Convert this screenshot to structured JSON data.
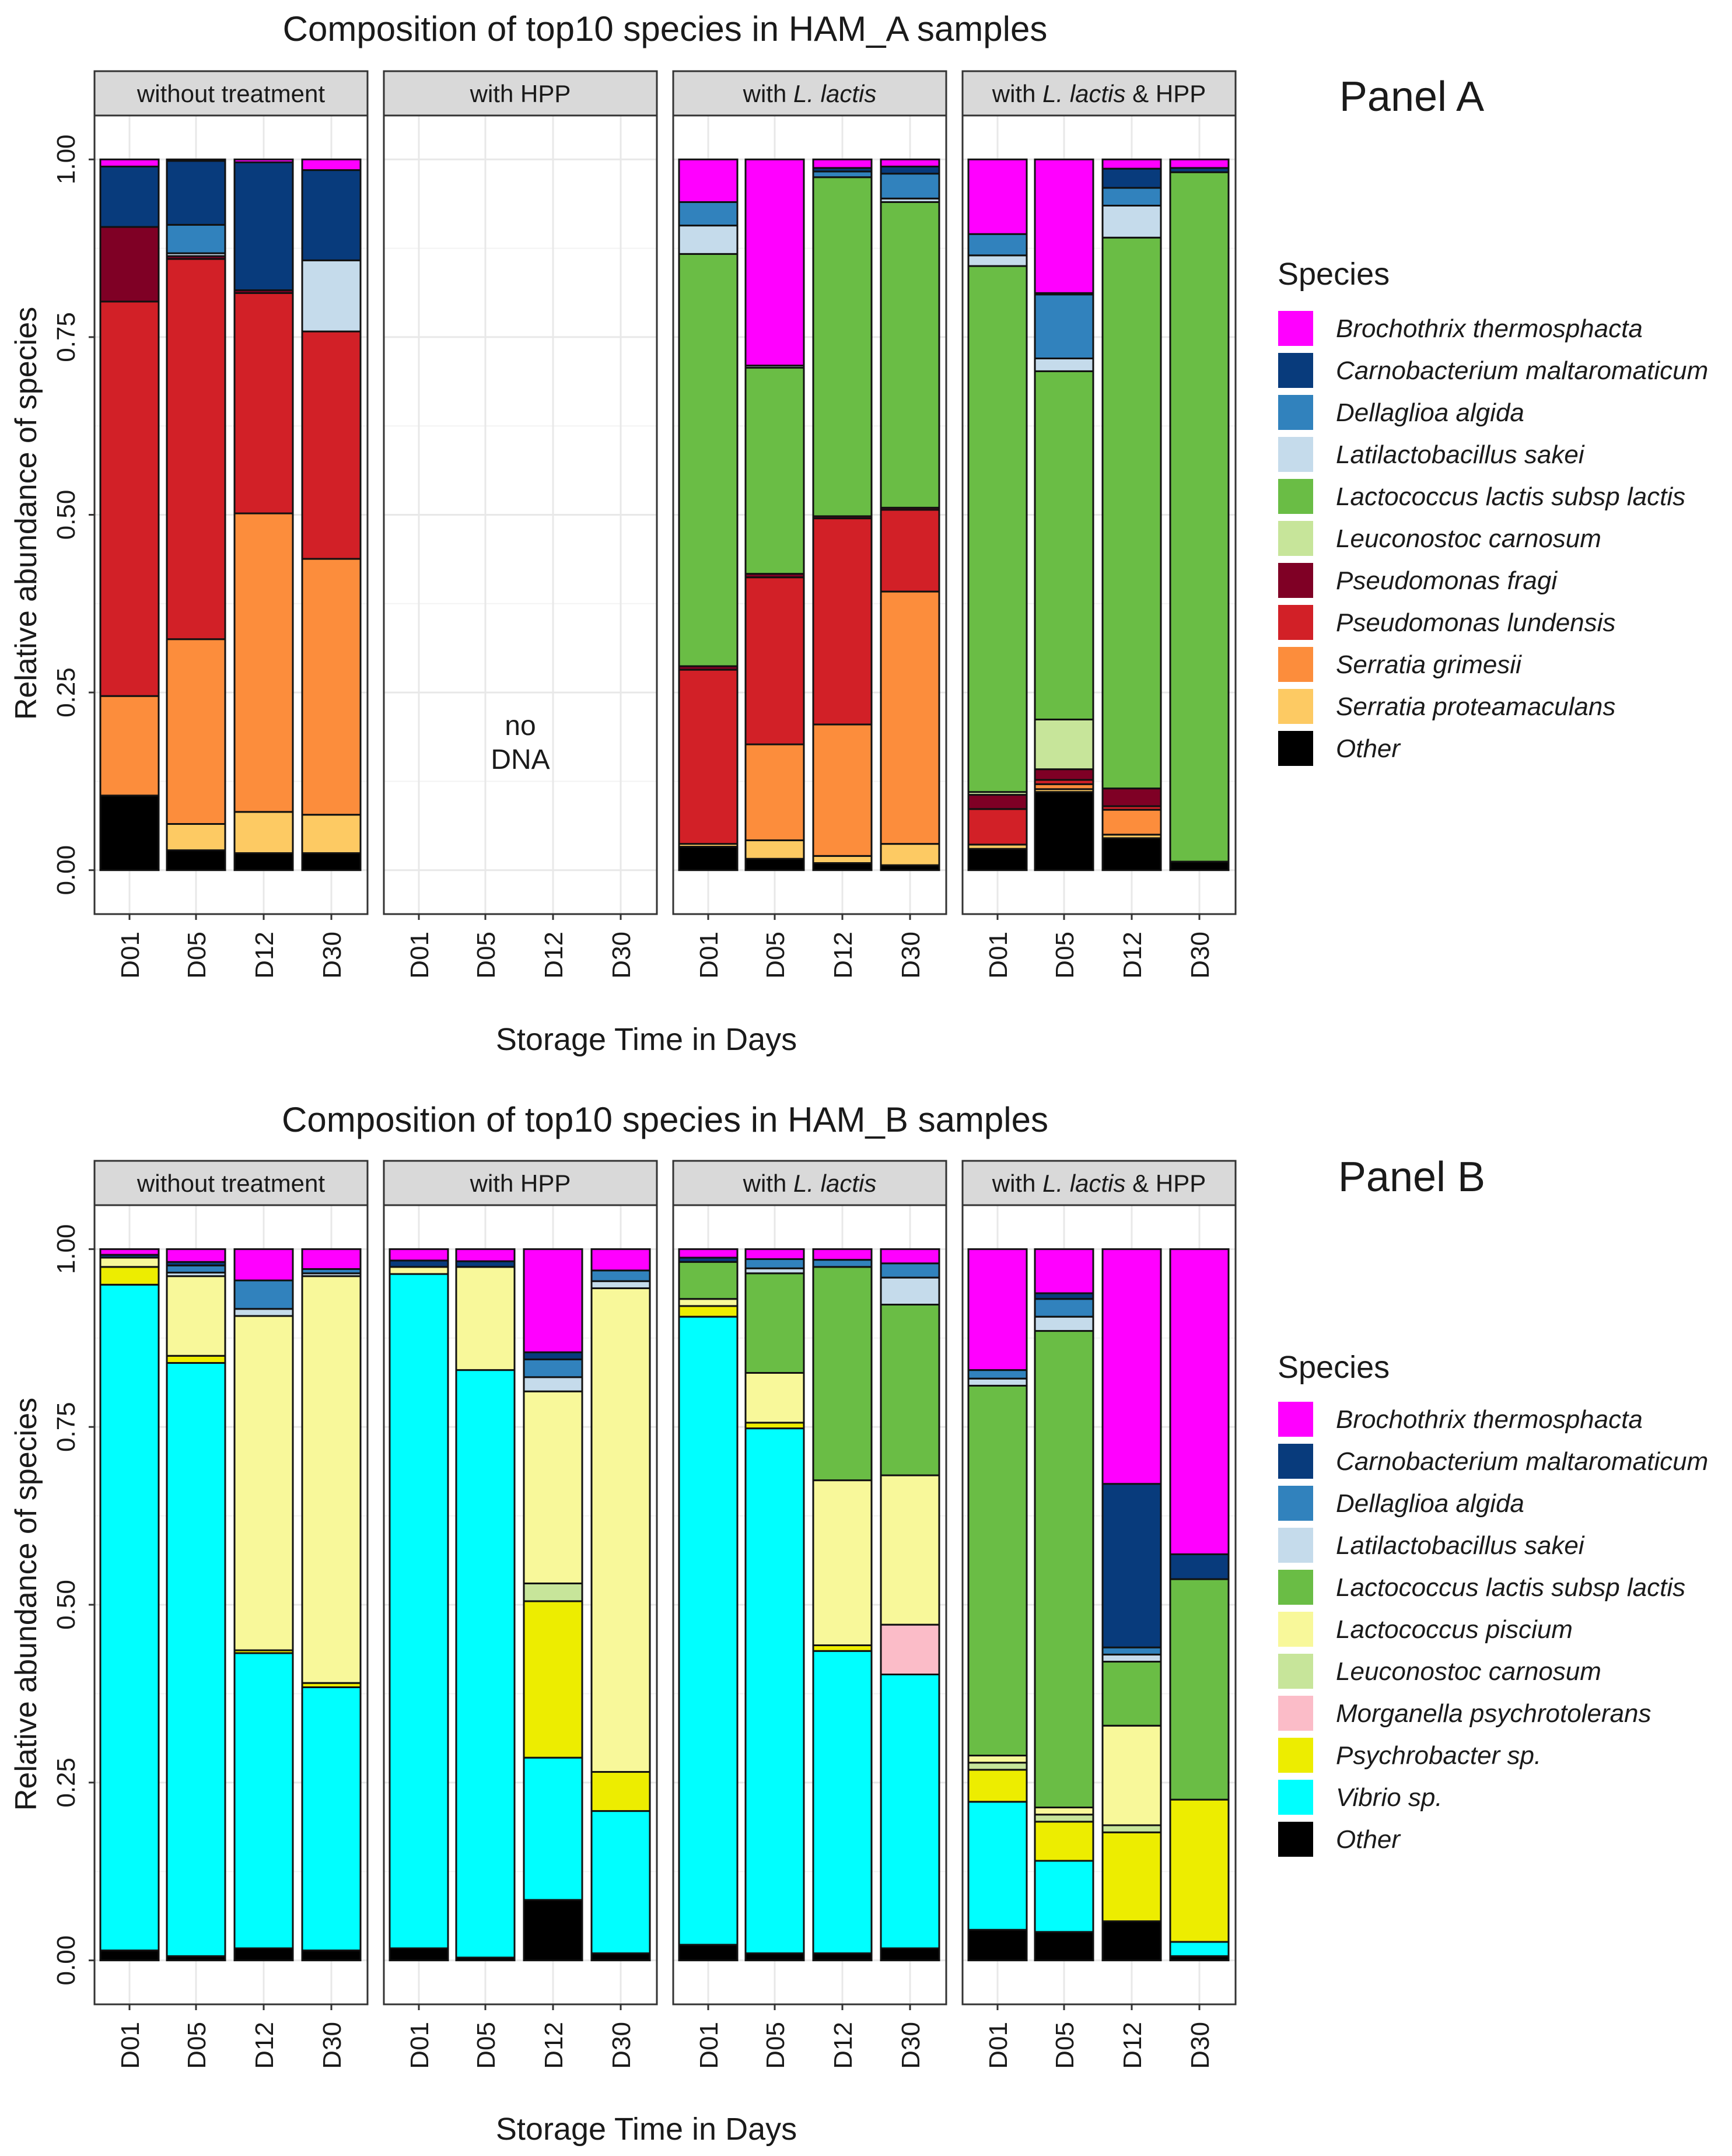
{
  "colors": {
    "Brochothrix thermosphacta": "#ff00ff",
    "Carnobacterium maltaromaticum": "#083b7c",
    "Dellaglioa algida": "#3182bd",
    "Latilactobacillus sakei": "#c5dbeb",
    "Lactococcus lactis subsp lactis": "#6abd45",
    "Lactococcus piscium": "#f8f89a",
    "Leuconostoc carnosum": "#c7e59a",
    "Morganella psychrotolerans": "#fbbcc8",
    "Pseudomonas fragi": "#7f0025",
    "Pseudomonas lundensis": "#d22027",
    "Serratia grimesii": "#fc8d3c",
    "Serratia proteamaculans": "#fdca63",
    "Psychrobacter sp.": "#eded00",
    "Vibrio sp.": "#00ffff",
    "Other": "#000000"
  },
  "chart_data": [
    {
      "type": "bar",
      "stacked": true,
      "panel_label": "Panel A",
      "title": "Composition of top10 species in HAM_A samples",
      "xlabel": "Storage Time in Days",
      "ylabel": "Relative abundance of species",
      "ylim": [
        0,
        1
      ],
      "yticks": [
        "0.00",
        "0.25",
        "0.50",
        "0.75",
        "1.00"
      ],
      "categories": [
        "D01",
        "D05",
        "D12",
        "D30"
      ],
      "legend_title": "Species",
      "legend": [
        {
          "name": "Brochothrix thermosphacta"
        },
        {
          "name": "Carnobacterium maltaromaticum"
        },
        {
          "name": "Dellaglioa algida"
        },
        {
          "name": "Latilactobacillus sakei"
        },
        {
          "name": "Lactococcus lactis subsp lactis",
          "highlight": "#3aa645"
        },
        {
          "name": "Leuconostoc carnosum"
        },
        {
          "name": "Pseudomonas fragi"
        },
        {
          "name": "Pseudomonas lundensis"
        },
        {
          "name": "Serratia grimesii"
        },
        {
          "name": "Serratia proteamaculans"
        },
        {
          "name": "Other"
        }
      ],
      "stack_order": [
        "Other",
        "Serratia proteamaculans",
        "Serratia grimesii",
        "Pseudomonas lundensis",
        "Pseudomonas fragi",
        "Leuconostoc carnosum",
        "Lactococcus lactis subsp lactis",
        "Latilactobacillus sakei",
        "Dellaglioa algida",
        "Carnobacterium maltaromaticum",
        "Brochothrix thermosphacta"
      ],
      "facets": [
        {
          "label": "without treatment",
          "bars": [
            {
              "Other": 0.105,
              "Serratia grimesii": 0.14,
              "Pseudomonas lundensis": 0.555,
              "Pseudomonas fragi": 0.105,
              "Carnobacterium maltaromaticum": 0.085,
              "Brochothrix thermosphacta": 0.01
            },
            {
              "Other": 0.028,
              "Serratia proteamaculans": 0.037,
              "Serratia grimesii": 0.26,
              "Pseudomonas lundensis": 0.535,
              "Pseudomonas fragi": 0.004,
              "Latilactobacillus sakei": 0.004,
              "Dellaglioa algida": 0.04,
              "Carnobacterium maltaromaticum": 0.09,
              "Brochothrix thermosphacta": 0.002
            },
            {
              "Other": 0.024,
              "Serratia proteamaculans": 0.058,
              "Serratia grimesii": 0.42,
              "Pseudomonas lundensis": 0.31,
              "Pseudomonas fragi": 0.004,
              "Carnobacterium maltaromaticum": 0.18,
              "Brochothrix thermosphacta": 0.004
            },
            {
              "Other": 0.024,
              "Serratia proteamaculans": 0.054,
              "Serratia grimesii": 0.36,
              "Pseudomonas lundensis": 0.32,
              "Latilactobacillus sakei": 0.1,
              "Carnobacterium maltaromaticum": 0.127,
              "Brochothrix thermosphacta": 0.015
            }
          ]
        },
        {
          "label": "with HPP",
          "note": "no\nDNA",
          "bars": []
        },
        {
          "label": "with L. lactis",
          "label_plain": "with ",
          "label_italic": "L. lactis",
          "label_after": "",
          "bars": [
            {
              "Other": 0.033,
              "Serratia proteamaculans": 0.004,
              "Pseudomonas lundensis": 0.245,
              "Pseudomonas fragi": 0.005,
              "Lactococcus lactis subsp lactis": 0.58,
              "Latilactobacillus sakei": 0.04,
              "Dellaglioa algida": 0.033,
              "Brochothrix thermosphacta": 0.06
            },
            {
              "Other": 0.016,
              "Serratia proteamaculans": 0.026,
              "Serratia grimesii": 0.135,
              "Pseudomonas lundensis": 0.235,
              "Pseudomonas fragi": 0.005,
              "Lactococcus lactis subsp lactis": 0.29,
              "Latilactobacillus sakei": 0.003,
              "Brochothrix thermosphacta": 0.29
            },
            {
              "Other": 0.01,
              "Serratia proteamaculans": 0.01,
              "Serratia grimesii": 0.185,
              "Pseudomonas lundensis": 0.29,
              "Pseudomonas fragi": 0.003,
              "Lactococcus lactis subsp lactis": 0.477,
              "Dellaglioa algida": 0.008,
              "Carnobacterium maltaromaticum": 0.005,
              "Brochothrix thermosphacta": 0.012
            },
            {
              "Other": 0.007,
              "Serratia proteamaculans": 0.03,
              "Serratia grimesii": 0.355,
              "Pseudomonas lundensis": 0.115,
              "Pseudomonas fragi": 0.003,
              "Lactococcus lactis subsp lactis": 0.43,
              "Latilactobacillus sakei": 0.005,
              "Dellaglioa algida": 0.035,
              "Carnobacterium maltaromaticum": 0.01,
              "Brochothrix thermosphacta": 0.01
            }
          ]
        },
        {
          "label": "with L. lactis & HPP",
          "label_plain": "with ",
          "label_italic": "L. lactis",
          "label_after": " & HPP",
          "bars": [
            {
              "Other": 0.03,
              "Serratia proteamaculans": 0.006,
              "Pseudomonas lundensis": 0.05,
              "Pseudomonas fragi": 0.02,
              "Leuconostoc carnosum": 0.004,
              "Lactococcus lactis subsp lactis": 0.74,
              "Latilactobacillus sakei": 0.015,
              "Dellaglioa algida": 0.03,
              "Brochothrix thermosphacta": 0.105
            },
            {
              "Other": 0.11,
              "Serratia proteamaculans": 0.004,
              "Serratia grimesii": 0.007,
              "Pseudomonas lundensis": 0.006,
              "Pseudomonas fragi": 0.015,
              "Leuconostoc carnosum": 0.07,
              "Lactococcus lactis subsp lactis": 0.49,
              "Latilactobacillus sakei": 0.018,
              "Dellaglioa algida": 0.09,
              "Carnobacterium maltaromaticum": 0.002,
              "Brochothrix thermosphacta": 0.188
            },
            {
              "Other": 0.045,
              "Serratia proteamaculans": 0.005,
              "Serratia grimesii": 0.035,
              "Pseudomonas lundensis": 0.005,
              "Pseudomonas fragi": 0.025,
              "Lactococcus lactis subsp lactis": 0.775,
              "Latilactobacillus sakei": 0.045,
              "Dellaglioa algida": 0.025,
              "Carnobacterium maltaromaticum": 0.027,
              "Brochothrix thermosphacta": 0.013
            },
            {
              "Other": 0.012,
              "Lactococcus lactis subsp lactis": 0.97,
              "Carnobacterium maltaromaticum": 0.006,
              "Brochothrix thermosphacta": 0.012
            }
          ]
        }
      ]
    },
    {
      "type": "bar",
      "stacked": true,
      "panel_label": "Panel B",
      "title": "Composition of top10 species in HAM_B samples",
      "xlabel": "Storage Time in Days",
      "ylabel": "Relative abundance of species",
      "ylim": [
        0,
        1
      ],
      "yticks": [
        "0.00",
        "0.25",
        "0.50",
        "0.75",
        "1.00"
      ],
      "categories": [
        "D01",
        "D05",
        "D12",
        "D30"
      ],
      "legend_title": "Species",
      "legend": [
        {
          "name": "Brochothrix thermosphacta"
        },
        {
          "name": "Carnobacterium maltaromaticum"
        },
        {
          "name": "Dellaglioa algida"
        },
        {
          "name": "Latilactobacillus sakei"
        },
        {
          "name": "Lactococcus lactis subsp lactis",
          "highlight": "#22a022"
        },
        {
          "name": "Lactococcus piscium"
        },
        {
          "name": "Leuconostoc carnosum"
        },
        {
          "name": "Morganella psychrotolerans"
        },
        {
          "name": "Psychrobacter sp."
        },
        {
          "name": "Vibrio sp."
        },
        {
          "name": "Other"
        }
      ],
      "stack_order": [
        "Other",
        "Vibrio sp.",
        "Psychrobacter sp.",
        "Morganella psychrotolerans",
        "Leuconostoc carnosum",
        "Lactococcus piscium",
        "Lactococcus lactis subsp lactis",
        "Latilactobacillus sakei",
        "Dellaglioa algida",
        "Carnobacterium maltaromaticum",
        "Brochothrix thermosphacta"
      ],
      "facets": [
        {
          "label": "without treatment",
          "bars": [
            {
              "Other": 0.014,
              "Vibrio sp.": 0.936,
              "Psychrobacter sp.": 0.025,
              "Lactococcus piscium": 0.013,
              "Carnobacterium maltaromaticum": 0.004,
              "Brochothrix thermosphacta": 0.008
            },
            {
              "Other": 0.006,
              "Vibrio sp.": 0.834,
              "Psychrobacter sp.": 0.01,
              "Lactococcus piscium": 0.112,
              "Latilactobacillus sakei": 0.005,
              "Dellaglioa algida": 0.01,
              "Carnobacterium maltaromaticum": 0.005,
              "Brochothrix thermosphacta": 0.018
            },
            {
              "Other": 0.017,
              "Vibrio sp.": 0.415,
              "Psychrobacter sp.": 0.004,
              "Lactococcus piscium": 0.47,
              "Latilactobacillus sakei": 0.01,
              "Dellaglioa algida": 0.04,
              "Brochothrix thermosphacta": 0.044
            },
            {
              "Other": 0.014,
              "Vibrio sp.": 0.37,
              "Psychrobacter sp.": 0.006,
              "Lactococcus piscium": 0.572,
              "Latilactobacillus sakei": 0.004,
              "Dellaglioa algida": 0.006,
              "Brochothrix thermosphacta": 0.028
            }
          ]
        },
        {
          "label": "with HPP",
          "bars": [
            {
              "Other": 0.017,
              "Vibrio sp.": 0.948,
              "Lactococcus piscium": 0.01,
              "Carnobacterium maltaromaticum": 0.009,
              "Brochothrix thermosphacta": 0.016
            },
            {
              "Other": 0.004,
              "Vibrio sp.": 0.826,
              "Lactococcus piscium": 0.145,
              "Carnobacterium maltaromaticum": 0.008,
              "Brochothrix thermosphacta": 0.017
            },
            {
              "Other": 0.085,
              "Vibrio sp.": 0.2,
              "Psychrobacter sp.": 0.22,
              "Leuconostoc carnosum": 0.025,
              "Lactococcus piscium": 0.27,
              "Latilactobacillus sakei": 0.02,
              "Dellaglioa algida": 0.025,
              "Carnobacterium maltaromaticum": 0.01,
              "Brochothrix thermosphacta": 0.145
            },
            {
              "Other": 0.01,
              "Vibrio sp.": 0.2,
              "Psychrobacter sp.": 0.055,
              "Lactococcus piscium": 0.68,
              "Latilactobacillus sakei": 0.01,
              "Dellaglioa algida": 0.015,
              "Brochothrix thermosphacta": 0.03
            }
          ]
        },
        {
          "label": "with L. lactis",
          "label_plain": "with ",
          "label_italic": "L. lactis",
          "label_after": "",
          "bars": [
            {
              "Other": 0.022,
              "Vibrio sp.": 0.883,
              "Psychrobacter sp.": 0.015,
              "Lactococcus piscium": 0.01,
              "Lactococcus lactis subsp lactis": 0.052,
              "Carnobacterium maltaromaticum": 0.006,
              "Brochothrix thermosphacta": 0.012
            },
            {
              "Other": 0.01,
              "Vibrio sp.": 0.738,
              "Psychrobacter sp.": 0.008,
              "Lactococcus piscium": 0.07,
              "Lactococcus lactis subsp lactis": 0.14,
              "Latilactobacillus sakei": 0.007,
              "Dellaglioa algida": 0.013,
              "Brochothrix thermosphacta": 0.014
            },
            {
              "Other": 0.01,
              "Vibrio sp.": 0.425,
              "Psychrobacter sp.": 0.008,
              "Lactococcus piscium": 0.232,
              "Lactococcus lactis subsp lactis": 0.3,
              "Dellaglioa algida": 0.01,
              "Brochothrix thermosphacta": 0.015
            },
            {
              "Other": 0.017,
              "Vibrio sp.": 0.385,
              "Morganella psychrotolerans": 0.07,
              "Lactococcus piscium": 0.21,
              "Lactococcus lactis subsp lactis": 0.24,
              "Latilactobacillus sakei": 0.038,
              "Dellaglioa algida": 0.02,
              "Brochothrix thermosphacta": 0.02
            }
          ]
        },
        {
          "label": "with L. lactis & HPP",
          "label_plain": "with ",
          "label_italic": "L. lactis",
          "label_after": " & HPP",
          "bars": [
            {
              "Other": 0.043,
              "Vibrio sp.": 0.18,
              "Psychrobacter sp.": 0.045,
              "Leuconostoc carnosum": 0.01,
              "Lactococcus piscium": 0.01,
              "Lactococcus lactis subsp lactis": 0.52,
              "Latilactobacillus sakei": 0.01,
              "Dellaglioa algida": 0.012,
              "Brochothrix thermosphacta": 0.17
            },
            {
              "Other": 0.04,
              "Vibrio sp.": 0.1,
              "Psychrobacter sp.": 0.055,
              "Leuconostoc carnosum": 0.01,
              "Lactococcus piscium": 0.01,
              "Lactococcus lactis subsp lactis": 0.67,
              "Latilactobacillus sakei": 0.02,
              "Dellaglioa algida": 0.025,
              "Carnobacterium maltaromaticum": 0.008,
              "Brochothrix thermosphacta": 0.062
            },
            {
              "Other": 0.055,
              "Psychrobacter sp.": 0.125,
              "Leuconostoc carnosum": 0.01,
              "Lactococcus piscium": 0.14,
              "Lactococcus lactis subsp lactis": 0.09,
              "Latilactobacillus sakei": 0.01,
              "Dellaglioa algida": 0.01,
              "Carnobacterium maltaromaticum": 0.23,
              "Brochothrix thermosphacta": 0.33
            },
            {
              "Other": 0.006,
              "Vibrio sp.": 0.02,
              "Psychrobacter sp.": 0.2,
              "Lactococcus lactis subsp lactis": 0.31,
              "Carnobacterium maltaromaticum": 0.035,
              "Brochothrix thermosphacta": 0.429
            }
          ]
        }
      ]
    }
  ]
}
